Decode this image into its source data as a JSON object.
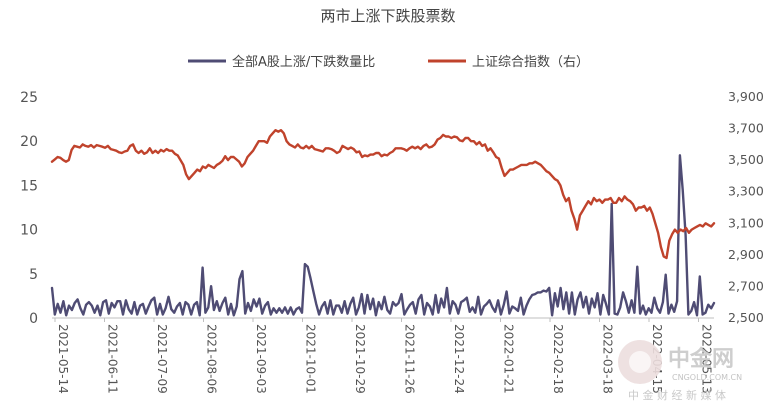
{
  "chart_data": {
    "type": "line",
    "title": "两市上涨下跌股票数",
    "legend_position": "top-center",
    "grid": false,
    "x_ticks": [
      "2021-05-14",
      "2021-06-11",
      "2021-07-09",
      "2021-08-06",
      "2021-09-03",
      "2021-10-01",
      "2021-10-29",
      "2021-11-26",
      "2021-12-24",
      "2022-01-21",
      "2022-02-18",
      "2022-03-18",
      "2022-04-15",
      "2022-05-13"
    ],
    "y_left": {
      "min": 0,
      "max": 25,
      "ticks": [
        "0",
        "5",
        "10",
        "15",
        "20",
        "25"
      ]
    },
    "y_right": {
      "min": 2500,
      "max": 3900,
      "ticks": [
        "2,500",
        "2,700",
        "2,900",
        "3,100",
        "3,300",
        "3,500",
        "3,700",
        "3,900"
      ]
    },
    "series": [
      {
        "name": "全部A股上涨/下跌数量比",
        "axis": "left",
        "color": "#4f4c74",
        "values": [
          3.4,
          0.4,
          1.6,
          0.6,
          1.9,
          0.3,
          1.4,
          0.9,
          1.7,
          2.1,
          1.1,
          0.4,
          1.5,
          1.8,
          1.4,
          0.6,
          1.4,
          0.3,
          1.8,
          2.0,
          0.5,
          1.7,
          1.2,
          1.9,
          1.9,
          0.4,
          2.0,
          1.0,
          0.5,
          1.8,
          0.4,
          1.4,
          1.6,
          0.5,
          1.3,
          2.0,
          2.3,
          0.4,
          1.6,
          0.4,
          1.1,
          2.4,
          1.0,
          0.6,
          1.3,
          1.7,
          0.4,
          1.8,
          1.5,
          0.4,
          1.5,
          1.8,
          0.3,
          5.7,
          0.6,
          1.2,
          3.6,
          0.9,
          1.9,
          0.8,
          1.7,
          2.3,
          0.4,
          1.6,
          0.3,
          1.3,
          4.4,
          5.3,
          0.5,
          1.7,
          0.8,
          2.1,
          1.3,
          2.2,
          0.5,
          1.4,
          1.8,
          0.4,
          1.1,
          0.6,
          1.1,
          0.6,
          1.2,
          0.5,
          1.2,
          0.4,
          1.0,
          1.2,
          0.6,
          6.1,
          5.8,
          4.5,
          3.0,
          1.6,
          0.4,
          1.3,
          1.8,
          0.5,
          2.0,
          0.4,
          1.4,
          1.4,
          0.6,
          1.9,
          0.5,
          1.6,
          2.3,
          0.4,
          1.2,
          2.7,
          0.5,
          2.6,
          1.0,
          2.2,
          0.3,
          1.8,
          1.0,
          2.4,
          0.9,
          0.5,
          1.8,
          1.4,
          1.7,
          2.7,
          0.4,
          1.0,
          1.5,
          1.8,
          0.5,
          2.1,
          2.6,
          0.4,
          1.7,
          1.3,
          0.4,
          2.6,
          0.6,
          2.2,
          1.2,
          3.4,
          0.5,
          1.9,
          1.5,
          0.5,
          1.8,
          2.0,
          2.3,
          0.7,
          1.2,
          0.6,
          2.4,
          0.4,
          1.3,
          1.6,
          2.0,
          1.2,
          0.7,
          2.0,
          0.4,
          1.5,
          3.0,
          0.5,
          1.3,
          1.1,
          0.8,
          2.3,
          0.4,
          1.4,
          2.1,
          2.6,
          2.7,
          2.9,
          2.9,
          3.1,
          3.0,
          3.4,
          0.3,
          2.8,
          1.3,
          3.4,
          1.0,
          2.9,
          0.5,
          2.9,
          0.4,
          2.1,
          2.9,
          1.2,
          2.4,
          0.5,
          2.2,
          1.2,
          2.8,
          0.4,
          2.6,
          1.6,
          0.4,
          12.9,
          0.5,
          0.4,
          1.2,
          2.9,
          1.9,
          0.6,
          2.0,
          0.6,
          5.8,
          0.5,
          1.4,
          0.4,
          1.1,
          0.6,
          2.3,
          1.1,
          0.6,
          1.8,
          4.9,
          0.5,
          1.5,
          0.7,
          1.9,
          18.4,
          14.5,
          9.4,
          0.4,
          0.8,
          1.8,
          0.3,
          4.7,
          0.4,
          0.6,
          1.5,
          1.1,
          1.7
        ]
      },
      {
        "name": "上证综合指数（右）",
        "axis": "right",
        "color": "#c0432c",
        "values": [
          3490,
          3505,
          3520,
          3515,
          3500,
          3490,
          3500,
          3565,
          3590,
          3585,
          3580,
          3600,
          3590,
          3585,
          3595,
          3580,
          3595,
          3590,
          3585,
          3578,
          3590,
          3570,
          3565,
          3560,
          3550,
          3545,
          3555,
          3560,
          3590,
          3600,
          3560,
          3545,
          3560,
          3540,
          3550,
          3575,
          3545,
          3560,
          3545,
          3565,
          3555,
          3570,
          3560,
          3560,
          3540,
          3530,
          3500,
          3470,
          3410,
          3380,
          3400,
          3420,
          3440,
          3430,
          3460,
          3450,
          3470,
          3460,
          3450,
          3470,
          3480,
          3495,
          3525,
          3500,
          3520,
          3520,
          3505,
          3490,
          3460,
          3480,
          3520,
          3540,
          3560,
          3590,
          3620,
          3620,
          3620,
          3610,
          3650,
          3670,
          3690,
          3680,
          3690,
          3670,
          3620,
          3600,
          3590,
          3580,
          3600,
          3580,
          3575,
          3590,
          3575,
          3590,
          3570,
          3565,
          3560,
          3555,
          3575,
          3575,
          3570,
          3560,
          3545,
          3555,
          3590,
          3580,
          3570,
          3580,
          3570,
          3550,
          3555,
          3520,
          3530,
          3525,
          3535,
          3535,
          3545,
          3545,
          3525,
          3535,
          3530,
          3545,
          3555,
          3575,
          3575,
          3575,
          3570,
          3560,
          3575,
          3585,
          3575,
          3585,
          3570,
          3590,
          3600,
          3580,
          3585,
          3600,
          3630,
          3640,
          3660,
          3650,
          3650,
          3640,
          3650,
          3645,
          3625,
          3620,
          3640,
          3640,
          3620,
          3620,
          3600,
          3615,
          3590,
          3600,
          3560,
          3575,
          3550,
          3520,
          3510,
          3450,
          3400,
          3420,
          3440,
          3440,
          3450,
          3460,
          3470,
          3470,
          3470,
          3480,
          3480,
          3490,
          3480,
          3470,
          3450,
          3430,
          3420,
          3400,
          3380,
          3370,
          3340,
          3280,
          3240,
          3260,
          3180,
          3130,
          3060,
          3150,
          3180,
          3210,
          3240,
          3220,
          3260,
          3240,
          3250,
          3230,
          3250,
          3250,
          3260,
          3230,
          3230,
          3260,
          3240,
          3270,
          3250,
          3240,
          3220,
          3180,
          3200,
          3200,
          3210,
          3180,
          3200,
          3160,
          3100,
          3040,
          2950,
          2890,
          2880,
          2990,
          3030,
          3060,
          3040,
          3060,
          3050,
          3070,
          3040,
          3060,
          3070,
          3080,
          3090,
          3080,
          3100,
          3090,
          3080,
          3100
        ]
      }
    ]
  },
  "watermark": {
    "name": "中金网",
    "domain": "CNGOLD.COM.CN",
    "tagline": "中 金 财 经 新 媒 体",
    "logo_color": "#e8d9d9"
  }
}
